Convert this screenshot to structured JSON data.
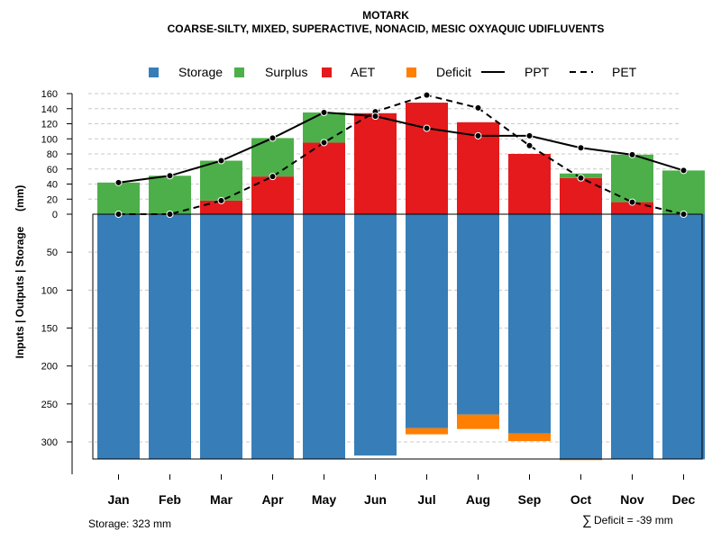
{
  "chart_data": {
    "type": "bar",
    "title": "MOTARK",
    "subtitle": "COARSE-SILTY, MIXED, SUPERACTIVE, NONACID, MESIC OXYAQUIC UDIFLUVENTS",
    "ylabel": "Inputs | Outputs | Storage     (mm)",
    "categories": [
      "Jan",
      "Feb",
      "Mar",
      "Apr",
      "May",
      "Jun",
      "Jul",
      "Aug",
      "Sep",
      "Oct",
      "Nov",
      "Dec"
    ],
    "y_ticks_top": [
      "160",
      "140",
      "120",
      "100",
      "80",
      "60",
      "40",
      "20",
      "0"
    ],
    "y_ticks_bottom": [
      "50",
      "100",
      "150",
      "200",
      "250",
      "300"
    ],
    "ylim_top": [
      0,
      160
    ],
    "ylim_bottom": [
      0,
      323
    ],
    "legend": {
      "placement": "top",
      "items": [
        {
          "label": "Storage",
          "kind": "box",
          "color": "#377EB8"
        },
        {
          "label": "Surplus",
          "kind": "box",
          "color": "#4DAF4A"
        },
        {
          "label": "AET",
          "kind": "box",
          "color": "#E41A1C"
        },
        {
          "label": "Deficit",
          "kind": "box",
          "color": "#FF7F00"
        },
        {
          "label": "PPT",
          "kind": "solid-line",
          "color": "#000000"
        },
        {
          "label": "PET",
          "kind": "dashed-line",
          "color": "#000000"
        }
      ]
    },
    "series": [
      {
        "name": "Storage",
        "color": "#377EB8",
        "values": [
          323,
          323,
          323,
          323,
          323,
          318,
          282,
          264,
          289,
          323,
          323,
          323
        ]
      },
      {
        "name": "Deficit",
        "color": "#FF7F00",
        "values": [
          0,
          0,
          0,
          0,
          0,
          0,
          8,
          19,
          10,
          1,
          0,
          0
        ]
      },
      {
        "name": "AET",
        "color": "#E41A1C",
        "values": [
          0,
          0,
          18,
          50,
          95,
          134,
          148,
          122,
          80,
          48,
          16,
          0
        ]
      },
      {
        "name": "Surplus",
        "color": "#4DAF4A",
        "values": [
          42,
          51,
          53,
          51,
          40,
          0,
          0,
          0,
          0,
          6,
          63,
          58
        ]
      },
      {
        "name": "PPT",
        "color": "#000000",
        "values": [
          42,
          51,
          71,
          101,
          135,
          130,
          114,
          104,
          104,
          88,
          79,
          58
        ]
      },
      {
        "name": "PET",
        "color": "#000000",
        "values": [
          0,
          0,
          18,
          50,
          95,
          136,
          158,
          141,
          91,
          48,
          16,
          0
        ]
      }
    ],
    "annotations": {
      "storage": "Storage: 323 mm",
      "deficit_symbol": "∑",
      "deficit": "Deficit = -39 mm"
    },
    "grid": true
  }
}
